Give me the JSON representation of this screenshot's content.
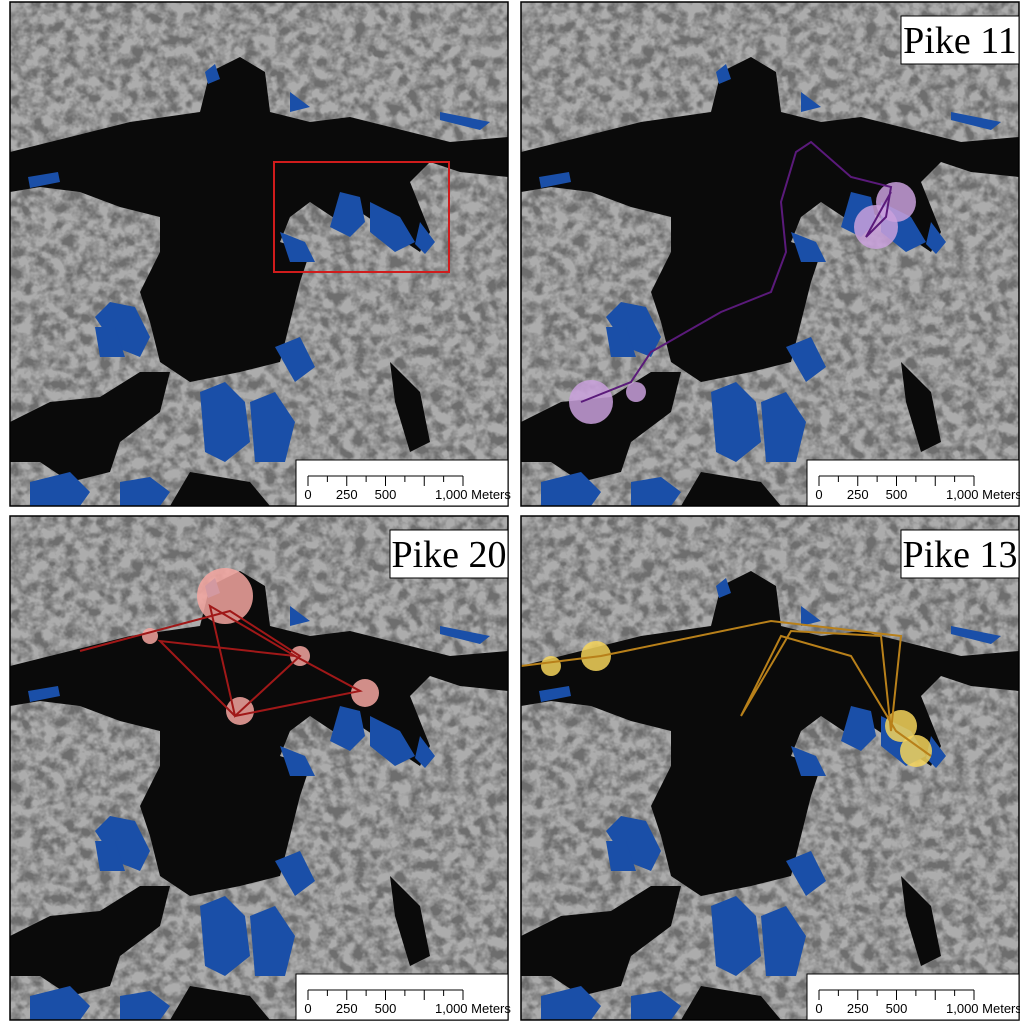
{
  "panels": [
    {
      "scale_bar": {
        "labels": [
          "0",
          "250",
          "500",
          "1,000 Meters"
        ]
      }
    },
    {
      "label": "Pike 11",
      "scale_bar": {
        "labels": [
          "0",
          "250",
          "500",
          "1,000 Meters"
        ]
      }
    },
    {
      "label": "Pike 20",
      "scale_bar": {
        "labels": [
          "0",
          "250",
          "500",
          "1,000 Meters"
        ]
      }
    },
    {
      "label": "Pike 13",
      "scale_bar": {
        "labels": [
          "0",
          "250",
          "500",
          "1,000 Meters"
        ]
      }
    }
  ]
}
